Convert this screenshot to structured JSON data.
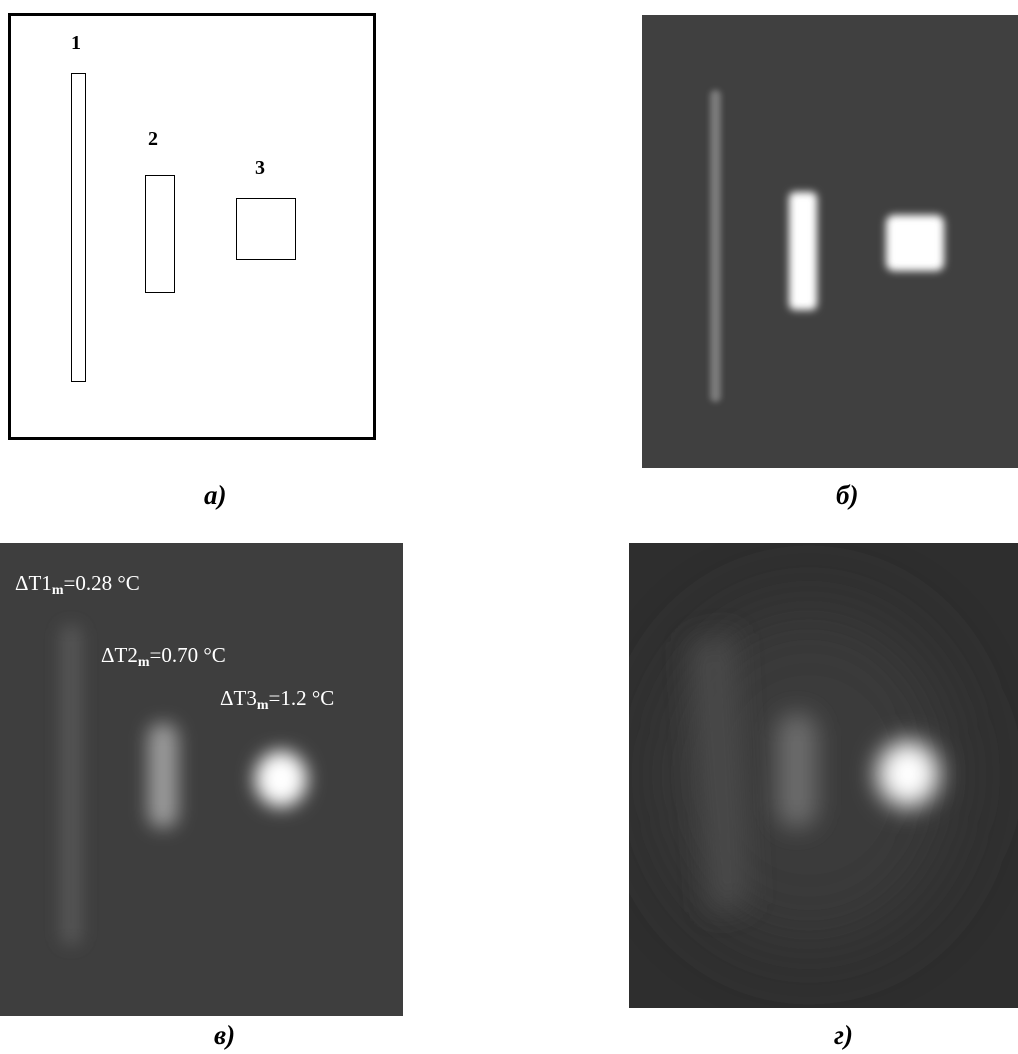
{
  "panels": {
    "a": {
      "caption": "а)",
      "labels": {
        "one": "1",
        "two": "2",
        "three": "3"
      }
    },
    "b": {
      "caption": "б)"
    },
    "v": {
      "caption": "в)",
      "labels": {
        "t1": {
          "prefix": "ΔT1",
          "sub": "m",
          "value": "=0.28 °C"
        },
        "t2": {
          "prefix": "ΔT2",
          "sub": "m",
          "value": "=0.70 °C"
        },
        "t3": {
          "prefix": "ΔT3",
          "sub": "m",
          "value": "=1.2 °C"
        }
      }
    },
    "g": {
      "caption": "г)"
    }
  },
  "colors": {
    "panel_b_background": "#404040",
    "panel_v_background": "#3e3e3e",
    "panel_g_background": "#2e2e2e",
    "hot_spot": "#ffffff"
  }
}
